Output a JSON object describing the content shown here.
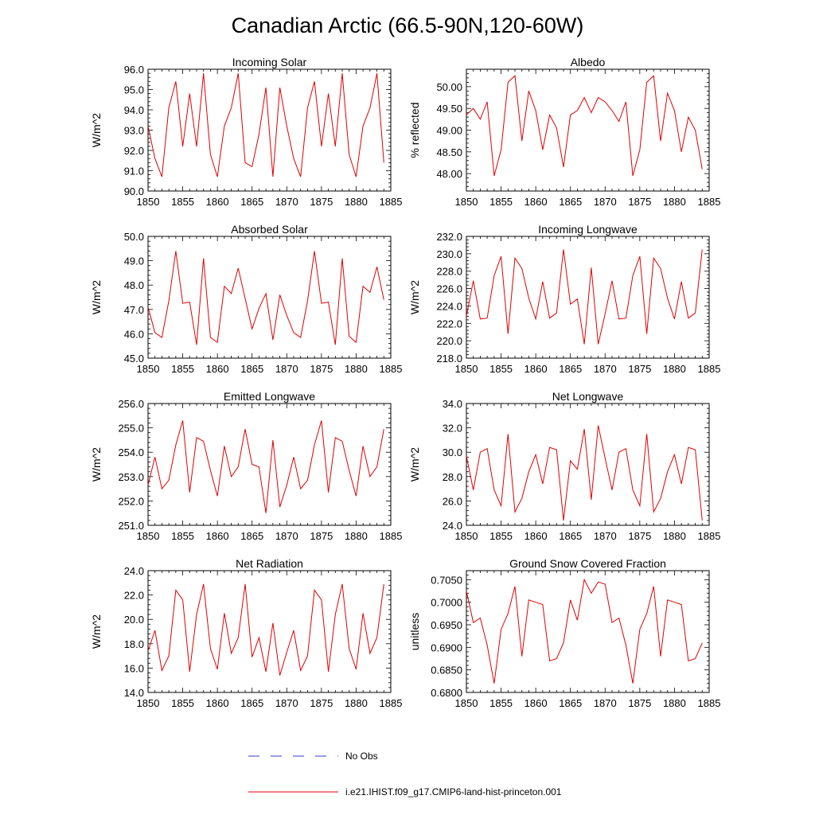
{
  "title": "Canadian Arctic (66.5-90N,120-60W)",
  "colors": {
    "model": "#e00000",
    "obs": "#3a3ac0",
    "axis": "#000000"
  },
  "legend": {
    "obs_label": "No Obs",
    "model_label": "i.e21.IHIST.f09_g17.CMIP6-land-hist-princeton.001"
  },
  "chart_data": [
    {
      "type": "line",
      "title": "Incoming Solar",
      "ylabel": "W/m^2",
      "xlim": [
        1850,
        1885
      ],
      "ylim": [
        90,
        96
      ],
      "yticks": [
        90,
        91,
        92,
        93,
        94,
        95,
        96
      ],
      "ytick_labels": [
        "90.0",
        "91.0",
        "92.0",
        "93.0",
        "94.0",
        "95.0",
        "96.0"
      ],
      "xticks": [
        1850,
        1855,
        1860,
        1865,
        1870,
        1875,
        1880,
        1885
      ],
      "xtick_labels": [
        "1850",
        "1855",
        "1860",
        "1865",
        "1870",
        "1875",
        "1880",
        "1885"
      ],
      "series": [
        {
          "x_start": 1850,
          "values": [
            93.2,
            91.6,
            90.7,
            94.1,
            95.4,
            92.2,
            94.8,
            92.2,
            95.8,
            91.8,
            90.7,
            93.2,
            94.1,
            95.8,
            91.4,
            91.2,
            92.8,
            95.1,
            90.7,
            95.1,
            93.2,
            91.6,
            90.7,
            94.1,
            95.4,
            92.2,
            94.8,
            92.2,
            95.8,
            91.8,
            90.7,
            93.2,
            94.1,
            95.8,
            91.4
          ]
        }
      ]
    },
    {
      "type": "line",
      "title": "Albedo",
      "ylabel": "% reflected",
      "xlim": [
        1850,
        1885
      ],
      "ylim": [
        47.6,
        50.4
      ],
      "yticks": [
        48.0,
        48.5,
        49.0,
        49.5,
        50.0
      ],
      "ytick_labels": [
        "48.00",
        "48.50",
        "49.00",
        "49.50",
        "50.00"
      ],
      "xticks": [
        1850,
        1855,
        1860,
        1865,
        1870,
        1875,
        1880,
        1885
      ],
      "xtick_labels": [
        "1850",
        "1855",
        "1860",
        "1865",
        "1870",
        "1875",
        "1880",
        "1885"
      ],
      "series": [
        {
          "x_start": 1850,
          "values": [
            49.35,
            49.5,
            49.25,
            49.65,
            47.95,
            48.55,
            50.1,
            50.25,
            48.75,
            49.9,
            49.45,
            48.55,
            49.35,
            49.05,
            48.15,
            49.35,
            49.45,
            49.75,
            49.4,
            49.75,
            49.65,
            49.45,
            49.2,
            49.65,
            47.95,
            48.55,
            50.1,
            50.25,
            48.75,
            49.85,
            49.45,
            48.5,
            49.3,
            49.0,
            48.1
          ]
        }
      ]
    },
    {
      "type": "line",
      "title": "Absorbed Solar",
      "ylabel": "W/m^2",
      "xlim": [
        1850,
        1885
      ],
      "ylim": [
        45,
        50
      ],
      "yticks": [
        45,
        46,
        47,
        48,
        49,
        50
      ],
      "ytick_labels": [
        "45.0",
        "46.0",
        "47.0",
        "48.0",
        "49.0",
        "50.0"
      ],
      "xticks": [
        1850,
        1855,
        1860,
        1865,
        1870,
        1875,
        1880,
        1885
      ],
      "xtick_labels": [
        "1850",
        "1855",
        "1860",
        "1865",
        "1870",
        "1875",
        "1880",
        "1885"
      ],
      "series": [
        {
          "x_start": 1850,
          "values": [
            47.1,
            46.05,
            45.85,
            47.35,
            49.4,
            47.25,
            47.3,
            45.55,
            49.1,
            45.85,
            45.65,
            47.95,
            47.65,
            48.7,
            47.45,
            46.2,
            47.05,
            47.65,
            45.75,
            47.6,
            46.75,
            46.05,
            45.85,
            47.35,
            49.4,
            47.25,
            47.3,
            45.55,
            49.1,
            45.9,
            45.65,
            47.95,
            47.7,
            48.75,
            47.4
          ]
        }
      ]
    },
    {
      "type": "line",
      "title": "Incoming Longwave",
      "ylabel": "W/m^2",
      "xlim": [
        1850,
        1885
      ],
      "ylim": [
        218,
        232
      ],
      "yticks": [
        218,
        220,
        222,
        224,
        226,
        228,
        230,
        232
      ],
      "ytick_labels": [
        "218.0",
        "220.0",
        "222.0",
        "224.0",
        "226.0",
        "228.0",
        "230.0",
        "232.0"
      ],
      "xticks": [
        1850,
        1855,
        1860,
        1865,
        1870,
        1875,
        1880,
        1885
      ],
      "xtick_labels": [
        "1850",
        "1855",
        "1860",
        "1865",
        "1870",
        "1875",
        "1880",
        "1885"
      ],
      "series": [
        {
          "x_start": 1850,
          "values": [
            222.8,
            226.9,
            222.5,
            222.6,
            227.5,
            229.7,
            220.8,
            229.5,
            228.3,
            224.9,
            222.5,
            226.8,
            222.6,
            223.2,
            230.5,
            224.2,
            224.8,
            219.6,
            228.4,
            219.6,
            223.1,
            226.9,
            222.5,
            222.6,
            227.5,
            229.7,
            220.8,
            229.5,
            228.3,
            224.9,
            222.5,
            226.8,
            222.6,
            223.2,
            230.5
          ]
        }
      ]
    },
    {
      "type": "line",
      "title": "Emitted Longwave",
      "ylabel": "W/m^2",
      "xlim": [
        1850,
        1885
      ],
      "ylim": [
        251,
        256
      ],
      "yticks": [
        251,
        252,
        253,
        254,
        255,
        256
      ],
      "ytick_labels": [
        "251.0",
        "252.0",
        "253.0",
        "254.0",
        "255.0",
        "256.0"
      ],
      "xticks": [
        1850,
        1855,
        1860,
        1865,
        1870,
        1875,
        1880,
        1885
      ],
      "xtick_labels": [
        "1850",
        "1855",
        "1860",
        "1865",
        "1870",
        "1875",
        "1880",
        "1885"
      ],
      "series": [
        {
          "x_start": 1850,
          "values": [
            252.65,
            253.8,
            252.5,
            252.85,
            254.3,
            255.3,
            252.35,
            254.6,
            254.45,
            253.25,
            252.2,
            254.25,
            253.0,
            253.4,
            254.95,
            253.5,
            253.4,
            251.5,
            254.5,
            251.75,
            252.65,
            253.8,
            252.5,
            252.85,
            254.3,
            255.3,
            252.35,
            254.6,
            254.45,
            253.25,
            252.2,
            254.25,
            253.0,
            253.4,
            254.95
          ]
        }
      ]
    },
    {
      "type": "line",
      "title": "Net Longwave",
      "ylabel": "W/m^2",
      "xlim": [
        1850,
        1885
      ],
      "ylim": [
        24,
        34
      ],
      "yticks": [
        24,
        26,
        28,
        30,
        32,
        34
      ],
      "ytick_labels": [
        "24.0",
        "26.0",
        "28.0",
        "30.0",
        "32.0",
        "34.0"
      ],
      "xticks": [
        1850,
        1855,
        1860,
        1865,
        1870,
        1875,
        1880,
        1885
      ],
      "xtick_labels": [
        "1850",
        "1855",
        "1860",
        "1865",
        "1870",
        "1875",
        "1880",
        "1885"
      ],
      "series": [
        {
          "x_start": 1850,
          "values": [
            29.7,
            26.9,
            30.0,
            30.3,
            26.9,
            25.6,
            31.5,
            25.1,
            26.2,
            28.4,
            29.8,
            27.4,
            30.4,
            30.2,
            24.4,
            29.3,
            28.6,
            31.9,
            26.1,
            32.2,
            29.5,
            26.9,
            30.0,
            30.3,
            26.9,
            25.6,
            31.5,
            25.1,
            26.2,
            28.4,
            29.8,
            27.4,
            30.4,
            30.2,
            24.4
          ]
        }
      ]
    },
    {
      "type": "line",
      "title": "Net Radiation",
      "ylabel": "W/m^2",
      "xlim": [
        1850,
        1885
      ],
      "ylim": [
        14,
        24
      ],
      "yticks": [
        14,
        16,
        18,
        20,
        22,
        24
      ],
      "ytick_labels": [
        "14.0",
        "16.0",
        "18.0",
        "20.0",
        "22.0",
        "24.0"
      ],
      "xticks": [
        1850,
        1855,
        1860,
        1865,
        1870,
        1875,
        1880,
        1885
      ],
      "xtick_labels": [
        "1850",
        "1855",
        "1860",
        "1865",
        "1870",
        "1875",
        "1880",
        "1885"
      ],
      "series": [
        {
          "x_start": 1850,
          "values": [
            17.4,
            19.1,
            15.8,
            17.0,
            22.4,
            21.6,
            15.7,
            20.4,
            22.9,
            17.6,
            15.9,
            20.5,
            17.2,
            18.5,
            22.9,
            16.9,
            18.5,
            15.7,
            19.7,
            15.4,
            17.3,
            19.1,
            15.8,
            17.0,
            22.4,
            21.6,
            15.7,
            20.4,
            22.9,
            17.6,
            15.9,
            20.5,
            17.2,
            18.5,
            22.9
          ]
        }
      ]
    },
    {
      "type": "line",
      "title": "Ground Snow Covered Fraction",
      "ylabel": "unitless",
      "xlim": [
        1850,
        1885
      ],
      "ylim": [
        0.68,
        0.707
      ],
      "yticks": [
        0.68,
        0.685,
        0.69,
        0.695,
        0.7,
        0.705
      ],
      "ytick_labels": [
        "0.6800",
        "0.6850",
        "0.6900",
        "0.6950",
        "0.7000",
        "0.7050"
      ],
      "xticks": [
        1850,
        1855,
        1860,
        1865,
        1870,
        1875,
        1880,
        1885
      ],
      "xtick_labels": [
        "1850",
        "1855",
        "1860",
        "1865",
        "1870",
        "1875",
        "1880",
        "1885"
      ],
      "series": [
        {
          "x_start": 1850,
          "values": [
            0.7025,
            0.6955,
            0.6965,
            0.6905,
            0.682,
            0.694,
            0.6975,
            0.7035,
            0.688,
            0.7005,
            0.7,
            0.6995,
            0.687,
            0.6875,
            0.691,
            0.7005,
            0.696,
            0.705,
            0.702,
            0.7045,
            0.704,
            0.6955,
            0.6965,
            0.6905,
            0.682,
            0.694,
            0.6975,
            0.7035,
            0.688,
            0.7005,
            0.7,
            0.6995,
            0.687,
            0.6875,
            0.691
          ]
        }
      ]
    }
  ]
}
